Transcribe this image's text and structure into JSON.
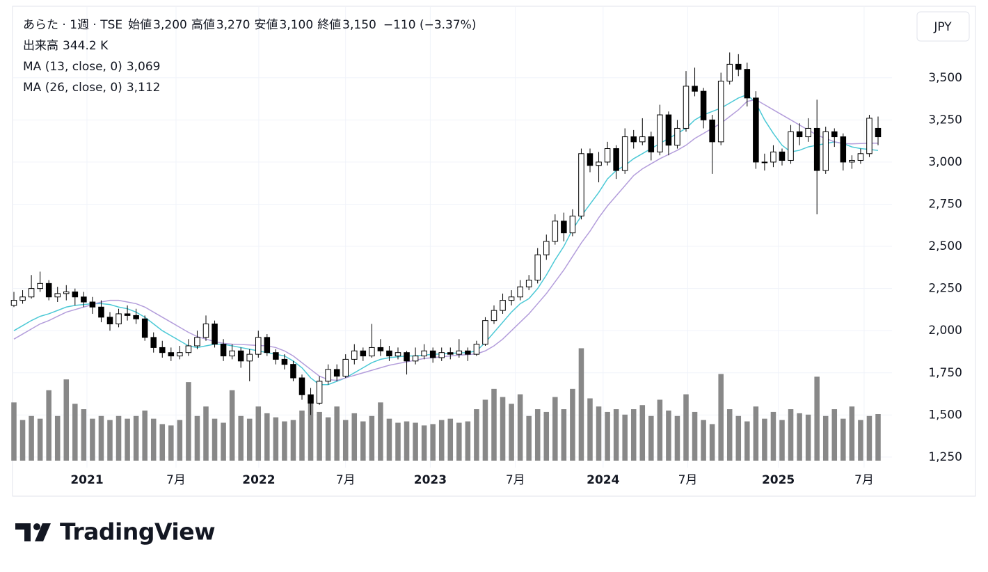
{
  "chart_data": {
    "type": "candlestick",
    "header": {
      "symbol": "あらた · 1週 · TSE",
      "ohlc_items": [
        {
          "name": "始値",
          "value": "3,200"
        },
        {
          "name": "高値",
          "value": "3,270"
        },
        {
          "name": "安値",
          "value": "3,100"
        },
        {
          "name": "終値",
          "value": "3,150"
        }
      ],
      "change": "−110 (−3.37%)",
      "volume_name": "出来高",
      "volume_value": "344.2 K",
      "ma_items": [
        {
          "name": "MA (13, close, 0)",
          "value": "3,069",
          "color": "#4cc9d6"
        },
        {
          "name": "MA (26, close, 0)",
          "value": "3,112",
          "color": "#b39ddb"
        }
      ]
    },
    "currency": "JPY",
    "brand": "TradingView",
    "ylim": [
      1229,
      3920
    ],
    "volume_lim": [
      0,
      3350
    ],
    "xlim": [
      0,
      99
    ],
    "yticks": [
      {
        "value": 1250,
        "label": "1,250"
      },
      {
        "value": 1500,
        "label": "1,500"
      },
      {
        "value": 1750,
        "label": "1,750"
      },
      {
        "value": 2000,
        "label": "2,000"
      },
      {
        "value": 2250,
        "label": "2,250"
      },
      {
        "value": 2500,
        "label": "2,500"
      },
      {
        "value": 2750,
        "label": "2,750"
      },
      {
        "value": 3000,
        "label": "3,000"
      },
      {
        "value": 3250,
        "label": "3,250"
      },
      {
        "value": 3500,
        "label": "3,500"
      }
    ],
    "xticks": [
      {
        "value": 8.37,
        "label": "2021"
      },
      {
        "value": 18.57,
        "label": "7月"
      },
      {
        "value": 28.05,
        "label": "2022"
      },
      {
        "value": 38.0,
        "label": "7月"
      },
      {
        "value": 47.7,
        "label": "2023"
      },
      {
        "value": 57.45,
        "label": "7月"
      },
      {
        "value": 67.5,
        "label": "2024"
      },
      {
        "value": 77.2,
        "label": "7月"
      },
      {
        "value": 87.57,
        "label": "2025"
      },
      {
        "value": 97.4,
        "label": "7月"
      }
    ],
    "bold_years": true,
    "up_color": "#ffffff",
    "down_color": "#000000",
    "volume_color": "#888888",
    "grid": true,
    "ohlc": [
      [
        2150,
        2230,
        2140,
        2180
      ],
      [
        2180,
        2240,
        2160,
        2200
      ],
      [
        2200,
        2330,
        2190,
        2250
      ],
      [
        2250,
        2350,
        2230,
        2280
      ],
      [
        2280,
        2300,
        2180,
        2200
      ],
      [
        2200,
        2260,
        2170,
        2220
      ],
      [
        2220,
        2270,
        2180,
        2230
      ],
      [
        2230,
        2250,
        2150,
        2200
      ],
      [
        2200,
        2230,
        2140,
        2170
      ],
      [
        2170,
        2200,
        2100,
        2140
      ],
      [
        2140,
        2180,
        2050,
        2080
      ],
      [
        2080,
        2110,
        2000,
        2040
      ],
      [
        2040,
        2130,
        2020,
        2100
      ],
      [
        2100,
        2150,
        2060,
        2090
      ],
      [
        2090,
        2130,
        2040,
        2070
      ],
      [
        2070,
        2090,
        1940,
        1960
      ],
      [
        1960,
        1990,
        1870,
        1900
      ],
      [
        1900,
        1940,
        1840,
        1870
      ],
      [
        1870,
        1900,
        1820,
        1850
      ],
      [
        1850,
        1910,
        1830,
        1870
      ],
      [
        1870,
        1950,
        1850,
        1910
      ],
      [
        1910,
        2000,
        1890,
        1960
      ],
      [
        1960,
        2090,
        1940,
        2040
      ],
      [
        2040,
        2060,
        1900,
        1920
      ],
      [
        1920,
        1950,
        1820,
        1850
      ],
      [
        1850,
        1920,
        1830,
        1880
      ],
      [
        1880,
        1900,
        1780,
        1820
      ],
      [
        1820,
        1890,
        1700,
        1860
      ],
      [
        1860,
        2000,
        1840,
        1960
      ],
      [
        1960,
        1980,
        1850,
        1870
      ],
      [
        1870,
        1890,
        1800,
        1830
      ],
      [
        1830,
        1860,
        1770,
        1800
      ],
      [
        1800,
        1820,
        1700,
        1720
      ],
      [
        1720,
        1740,
        1590,
        1620
      ],
      [
        1620,
        1660,
        1500,
        1570
      ],
      [
        1570,
        1730,
        1560,
        1700
      ],
      [
        1700,
        1800,
        1680,
        1770
      ],
      [
        1770,
        1800,
        1700,
        1730
      ],
      [
        1730,
        1860,
        1720,
        1830
      ],
      [
        1830,
        1920,
        1800,
        1880
      ],
      [
        1880,
        1900,
        1820,
        1850
      ],
      [
        1850,
        2040,
        1840,
        1900
      ],
      [
        1900,
        1950,
        1850,
        1880
      ],
      [
        1880,
        1910,
        1820,
        1850
      ],
      [
        1850,
        1900,
        1830,
        1870
      ],
      [
        1870,
        1880,
        1740,
        1820
      ],
      [
        1820,
        1900,
        1800,
        1850
      ],
      [
        1850,
        1920,
        1830,
        1880
      ],
      [
        1880,
        1900,
        1810,
        1840
      ],
      [
        1840,
        1900,
        1820,
        1870
      ],
      [
        1870,
        1900,
        1830,
        1860
      ],
      [
        1860,
        1950,
        1840,
        1880
      ],
      [
        1880,
        1900,
        1820,
        1860
      ],
      [
        1860,
        1940,
        1850,
        1920
      ],
      [
        1920,
        2080,
        1910,
        2060
      ],
      [
        2060,
        2150,
        2040,
        2120
      ],
      [
        2120,
        2220,
        2100,
        2180
      ],
      [
        2180,
        2240,
        2150,
        2200
      ],
      [
        2200,
        2300,
        2180,
        2260
      ],
      [
        2260,
        2330,
        2240,
        2300
      ],
      [
        2300,
        2490,
        2280,
        2450
      ],
      [
        2450,
        2570,
        2420,
        2530
      ],
      [
        2530,
        2690,
        2510,
        2650
      ],
      [
        2650,
        2700,
        2530,
        2580
      ],
      [
        2580,
        2720,
        2560,
        2680
      ],
      [
        2680,
        3080,
        2660,
        3050
      ],
      [
        3050,
        3080,
        2940,
        2980
      ],
      [
        2980,
        3060,
        2880,
        3000
      ],
      [
        3000,
        3120,
        2980,
        3080
      ],
      [
        3080,
        3100,
        2900,
        2950
      ],
      [
        2950,
        3200,
        2930,
        3150
      ],
      [
        3150,
        3190,
        3080,
        3120
      ],
      [
        3120,
        3260,
        3100,
        3150
      ],
      [
        3150,
        3180,
        3010,
        3060
      ],
      [
        3060,
        3340,
        3040,
        3280
      ],
      [
        3280,
        3300,
        3040,
        3100
      ],
      [
        3100,
        3250,
        3080,
        3200
      ],
      [
        3200,
        3540,
        3180,
        3450
      ],
      [
        3450,
        3560,
        3390,
        3420
      ],
      [
        3420,
        3440,
        3200,
        3250
      ],
      [
        3250,
        3280,
        2930,
        3120
      ],
      [
        3120,
        3530,
        3100,
        3480
      ],
      [
        3480,
        3650,
        3460,
        3580
      ],
      [
        3580,
        3640,
        3510,
        3550
      ],
      [
        3550,
        3590,
        3330,
        3380
      ],
      [
        3380,
        3420,
        2960,
        3000
      ],
      [
        3000,
        3050,
        2950,
        3000
      ],
      [
        3000,
        3100,
        2970,
        3060
      ],
      [
        3060,
        3080,
        2980,
        3010
      ],
      [
        3010,
        3220,
        2990,
        3180
      ],
      [
        3180,
        3230,
        3100,
        3150
      ],
      [
        3150,
        3260,
        3120,
        3200
      ],
      [
        3200,
        3370,
        2690,
        2950
      ],
      [
        2950,
        3210,
        2930,
        3180
      ],
      [
        3180,
        3200,
        3090,
        3150
      ],
      [
        3150,
        3170,
        2950,
        3000
      ],
      [
        3000,
        3040,
        2960,
        3010
      ],
      [
        3010,
        3080,
        2990,
        3050
      ],
      [
        3050,
        3280,
        3030,
        3260
      ],
      [
        3200,
        3270,
        3100,
        3150
      ]
    ],
    "volumes": [
      430,
      300,
      330,
      310,
      520,
      330,
      600,
      420,
      380,
      310,
      330,
      300,
      330,
      310,
      330,
      370,
      310,
      270,
      260,
      300,
      580,
      330,
      400,
      310,
      280,
      520,
      330,
      310,
      400,
      350,
      320,
      290,
      300,
      370,
      450,
      360,
      320,
      400,
      300,
      350,
      290,
      330,
      430,
      310,
      280,
      290,
      280,
      260,
      270,
      300,
      310,
      280,
      290,
      380,
      450,
      530,
      470,
      420,
      490,
      330,
      380,
      360,
      470,
      380,
      530,
      830,
      460,
      400,
      360,
      380,
      340,
      380,
      410,
      330,
      450,
      370,
      330,
      490,
      360,
      300,
      270,
      640,
      380,
      330,
      290,
      400,
      310,
      360,
      300,
      380,
      350,
      340,
      620,
      330,
      380,
      310,
      400,
      300,
      330,
      344.2
    ],
    "ma13": [
      2000,
      2030,
      2060,
      2085,
      2100,
      2120,
      2140,
      2150,
      2155,
      2160,
      2160,
      2155,
      2140,
      2130,
      2110,
      2080,
      2040,
      2000,
      1970,
      1940,
      1910,
      1900,
      1910,
      1920,
      1920,
      1910,
      1900,
      1890,
      1880,
      1870,
      1860,
      1850,
      1820,
      1780,
      1720,
      1680,
      1680,
      1700,
      1720,
      1750,
      1780,
      1810,
      1830,
      1840,
      1845,
      1850,
      1850,
      1855,
      1860,
      1862,
      1865,
      1868,
      1870,
      1880,
      1930,
      1990,
      2050,
      2110,
      2160,
      2190,
      2250,
      2330,
      2420,
      2500,
      2600,
      2680,
      2750,
      2820,
      2900,
      2950,
      2980,
      3020,
      3050,
      3080,
      3110,
      3140,
      3170,
      3200,
      3250,
      3280,
      3300,
      3320,
      3350,
      3380,
      3400,
      3350,
      3250,
      3170,
      3100,
      3060,
      3070,
      3090,
      3100,
      3110,
      3120,
      3110,
      3090,
      3080,
      3075,
      3069
    ],
    "ma26": [
      1950,
      1980,
      2010,
      2040,
      2060,
      2085,
      2110,
      2125,
      2140,
      2155,
      2170,
      2180,
      2180,
      2170,
      2160,
      2140,
      2110,
      2080,
      2050,
      2020,
      1990,
      1965,
      1950,
      1935,
      1925,
      1920,
      1918,
      1915,
      1912,
      1910,
      1900,
      1880,
      1850,
      1810,
      1770,
      1730,
      1710,
      1705,
      1720,
      1735,
      1750,
      1765,
      1780,
      1795,
      1805,
      1815,
      1825,
      1835,
      1840,
      1845,
      1850,
      1855,
      1858,
      1862,
      1880,
      1910,
      1950,
      2000,
      2050,
      2100,
      2160,
      2220,
      2290,
      2360,
      2440,
      2520,
      2590,
      2670,
      2740,
      2800,
      2860,
      2920,
      2960,
      2990,
      3020,
      3045,
      3070,
      3100,
      3140,
      3170,
      3200,
      3230,
      3270,
      3310,
      3360,
      3370,
      3340,
      3310,
      3280,
      3250,
      3220,
      3190,
      3160,
      3140,
      3120,
      3110,
      3108,
      3110,
      3112,
      3112
    ]
  }
}
